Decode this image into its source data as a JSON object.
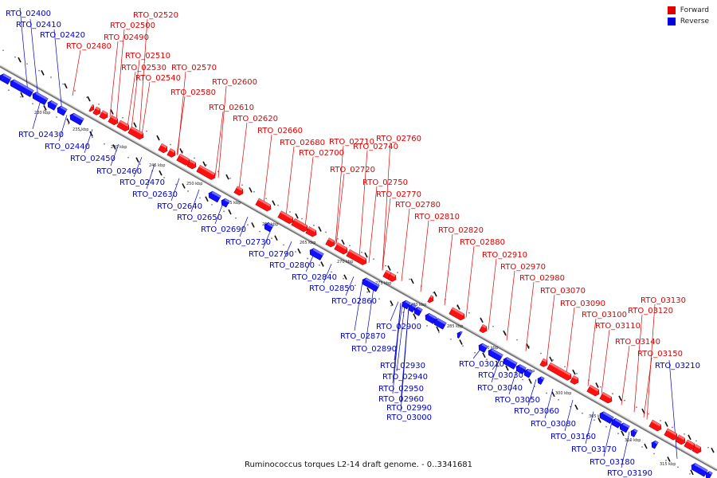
{
  "legend": {
    "forward_label": "Forward",
    "reverse_label": "Reverse",
    "forward_color": "#e00000",
    "reverse_color": "#0000e0"
  },
  "caption": {
    "organism": "Ruminococcus torques L2-14 draft genome.",
    "range": " - 0..3341681"
  },
  "ticks": [
    "230 kbp",
    "235 kbp",
    "240 kbp",
    "245 kbp",
    "250 kbp",
    "255 kbp",
    "260 kbp",
    "265 kbp",
    "270 kbp",
    "275 kbp",
    "280 kbp",
    "285 kbp",
    "290 kbp",
    "295 kbp",
    "300 kbp",
    "305 kbp",
    "310 kbp",
    "315 kbp"
  ],
  "forward_genes": [
    "RTO_02480",
    "RTO_02490",
    "RTO_02500",
    "RTO_02510",
    "RTO_02520",
    "RTO_02530",
    "RTO_02540",
    "RTO_02570",
    "RTO_02580",
    "RTO_02600",
    "RTO_02610",
    "RTO_02620",
    "RTO_02660",
    "RTO_02680",
    "RTO_02700",
    "RTO_02710",
    "RTO_02720",
    "RTO_02740",
    "RTO_02750",
    "RTO_02760",
    "RTO_02770",
    "RTO_02780",
    "RTO_02810",
    "RTO_02820",
    "RTO_02880",
    "RTO_02910",
    "RTO_02970",
    "RTO_02980",
    "RTO_03070",
    "RTO_03090",
    "RTO_03100",
    "RTO_03110",
    "RTO_03120",
    "RTO_03130",
    "RTO_03140",
    "RTO_03150"
  ],
  "reverse_genes": [
    "RTO_02400",
    "RTO_02410",
    "RTO_02420",
    "RTO_02430",
    "RTO_02440",
    "RTO_02450",
    "RTO_02460",
    "RTO_02470",
    "RTO_02630",
    "RTO_02640",
    "RTO_02650",
    "RTO_02690",
    "RTO_02730",
    "RTO_02790",
    "RTO_02800",
    "RTO_02840",
    "RTO_02850",
    "RTO_02860",
    "RTO_02870",
    "RTO_02890",
    "RTO_02900",
    "RTO_02930",
    "RTO_02940",
    "RTO_02950",
    "RTO_02960",
    "RTO_02990",
    "RTO_03000",
    "RTO_03010",
    "RTO_03030",
    "RTO_03040",
    "RTO_03050",
    "RTO_03060",
    "RTO_03080",
    "RTO_03160",
    "RTO_03170",
    "RTO_03180",
    "RTO_03190",
    "RTO_03210"
  ]
}
